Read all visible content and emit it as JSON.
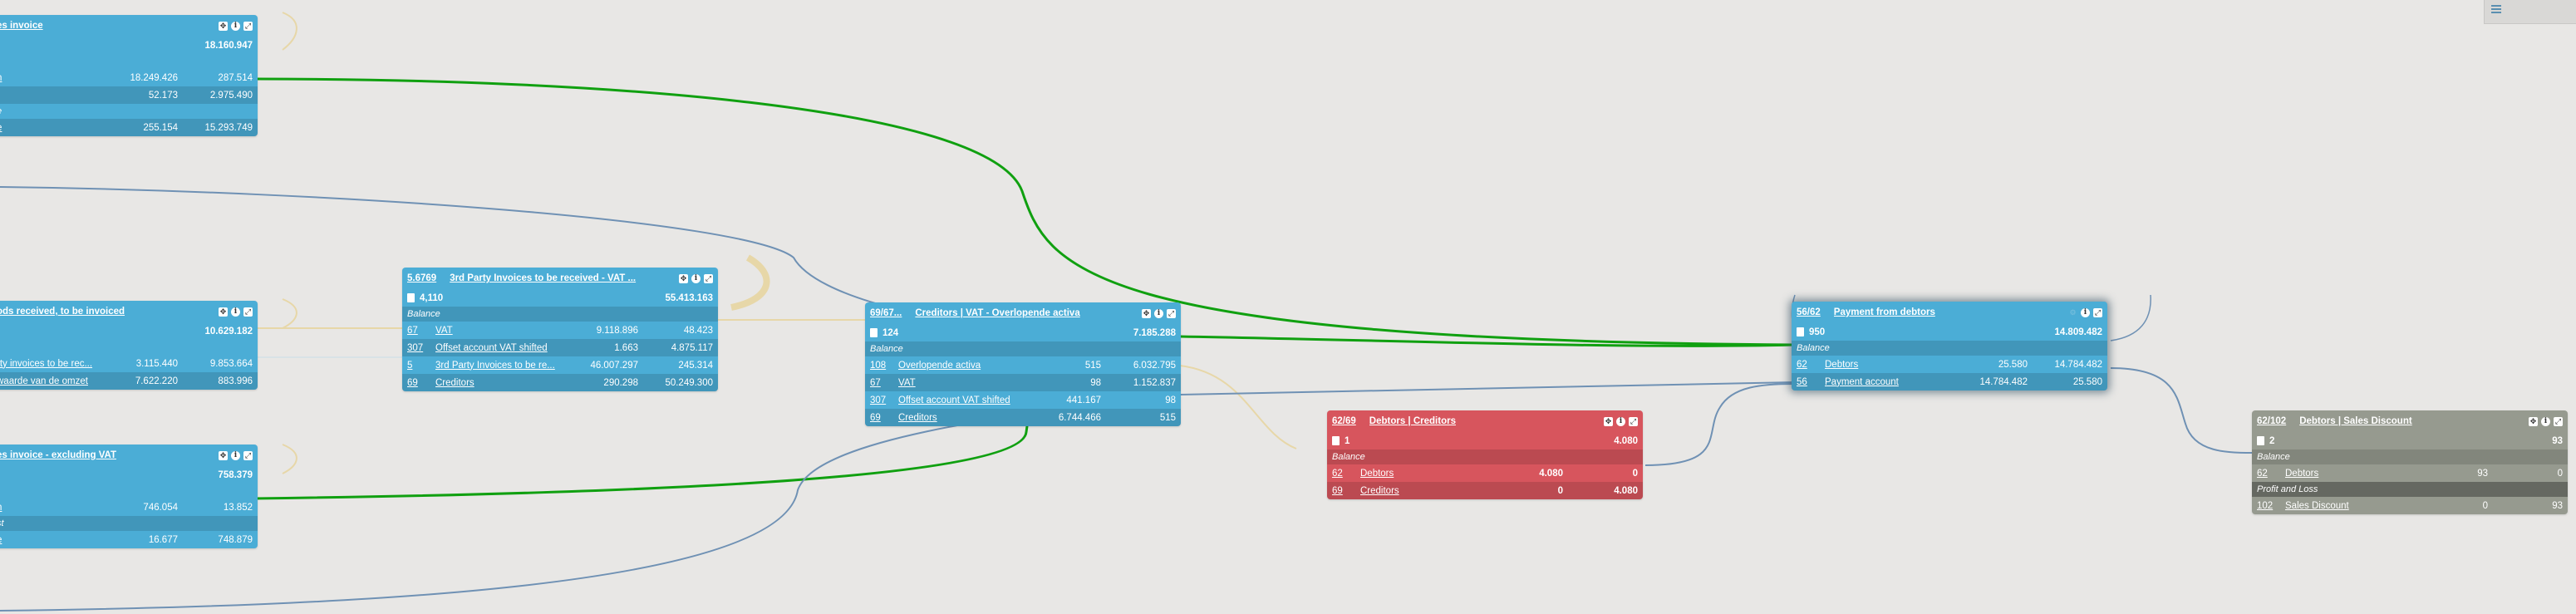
{
  "colors": {
    "blue": "#4badd6",
    "red": "#d7555d",
    "gray": "#969a8f",
    "green_link": "#10a010",
    "blue_link": "#6f91b4",
    "beige_link": "#e7d7a8"
  },
  "icons": [
    "move-icon",
    "info-icon",
    "expand-icon",
    "document-icon",
    "menu-icon"
  ],
  "cards": {
    "sales_invoice": {
      "title": "es invoice",
      "total": "18.160.947",
      "rows": [
        {
          "label": "n",
          "v1": "18.249.426",
          "v2": "287.514"
        },
        {
          "label": "",
          "v1": "52.173",
          "v2": "2.975.490"
        },
        {
          "label": "e",
          "v1": "",
          "v2": ""
        },
        {
          "label": "e",
          "v1": "255.154",
          "v2": "15.293.749"
        }
      ]
    },
    "goods_received": {
      "title": "ods received, to be invoiced",
      "total": "10.629.182",
      "rows": [
        {
          "label": "rty invoices to be rec...",
          "v1": "3.115.440",
          "v2": "9.853.664"
        },
        {
          "label": "waarde van de omzet",
          "v1": "7.622.220",
          "v2": "883.996"
        }
      ]
    },
    "sales_excl": {
      "title": "es invoice - excluding VAT",
      "total": "758.379",
      "rows": [
        {
          "label": "n",
          "v1": "746.054",
          "v2": "13.852"
        },
        {
          "label": "st",
          "v1": "",
          "v2": ""
        },
        {
          "label": "e",
          "v1": "16.677",
          "v2": "748.879"
        }
      ]
    },
    "third_party": {
      "code": "5.6769",
      "title": "3rd Party Invoices to be received - VAT ...",
      "count": "4,110",
      "total": "55.413.163",
      "section": "Balance",
      "rows": [
        {
          "num": "67",
          "label": "VAT",
          "v1": "9.118.896",
          "v2": "48.423"
        },
        {
          "num": "307",
          "label": "Offset account VAT shifted",
          "v1": "1.663",
          "v2": "4.875.117"
        },
        {
          "num": "5",
          "label": "3rd Party Invoices to be re...",
          "v1": "46.007.297",
          "v2": "245.314"
        },
        {
          "num": "69",
          "label": "Creditors",
          "v1": "290.298",
          "v2": "50.249.300"
        }
      ]
    },
    "creditors_vat": {
      "code": "69/67...",
      "title": "Creditors | VAT - Overlopende activa",
      "count": "124",
      "total": "7.185.288",
      "section": "Balance",
      "rows": [
        {
          "num": "108",
          "label": "Overlopende activa",
          "v1": "515",
          "v2": "6.032.795"
        },
        {
          "num": "67",
          "label": "VAT",
          "v1": "98",
          "v2": "1.152.837"
        },
        {
          "num": "307",
          "label": "Offset account VAT shifted",
          "v1": "441.167",
          "v2": "98"
        },
        {
          "num": "69",
          "label": "Creditors",
          "v1": "6.744.466",
          "v2": "515"
        }
      ]
    },
    "debtors_creditors": {
      "code": "62/69",
      "title": "Debtors | Creditors",
      "count": "1",
      "total": "4.080",
      "section": "Balance",
      "rows": [
        {
          "num": "62",
          "label": "Debtors",
          "v1": "4.080",
          "v2": "0"
        },
        {
          "num": "69",
          "label": "Creditors",
          "v1": "0",
          "v2": "4.080"
        }
      ]
    },
    "payment_debtors": {
      "code": "56/62",
      "title": "Payment from debtors",
      "count": "950",
      "total": "14.809.482",
      "section": "Balance",
      "rows": [
        {
          "num": "62",
          "label": "Debtors",
          "v1": "25.580",
          "v2": "14.784.482"
        },
        {
          "num": "56",
          "label": "Payment account",
          "v1": "14.784.482",
          "v2": "25.580"
        }
      ]
    },
    "sales_discount": {
      "code": "62/102",
      "title": "Debtors | Sales Discount",
      "count": "2",
      "total": "93",
      "section": "Balance",
      "section2": "Profit and Loss",
      "rows": [
        {
          "num": "62",
          "label": "Debtors",
          "v1": "93",
          "v2": "0"
        },
        {
          "num": "102",
          "label": "Sales Discount",
          "v1": "0",
          "v2": "93"
        }
      ]
    }
  }
}
